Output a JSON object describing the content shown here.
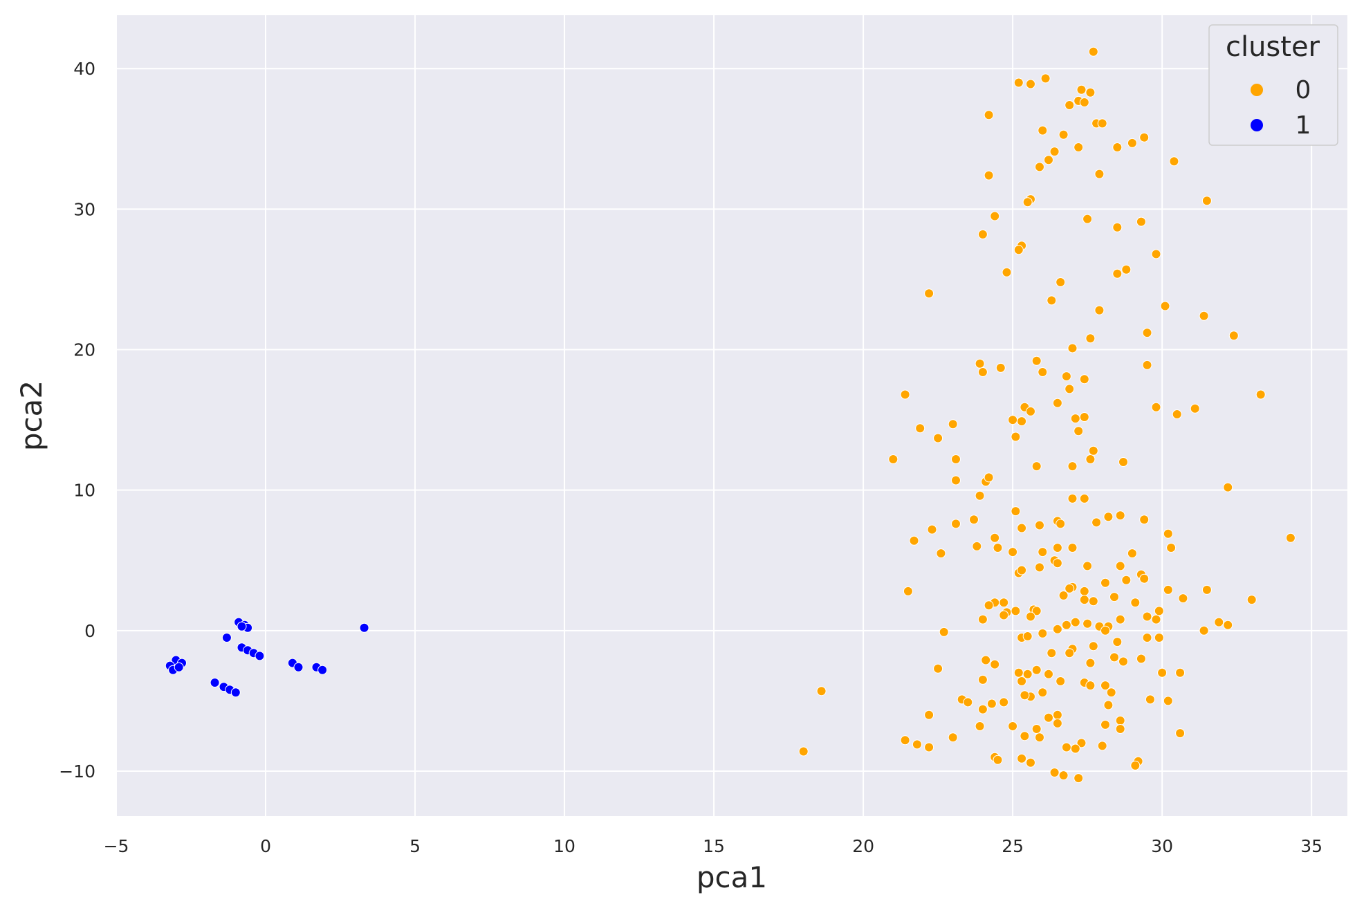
{
  "chart_data": {
    "type": "scatter",
    "title": "",
    "xlabel": "pca1",
    "ylabel": "pca2",
    "xlim": [
      -5,
      36.2
    ],
    "ylim": [
      -13.2,
      43.8
    ],
    "xticks": [
      -5,
      0,
      5,
      10,
      15,
      20,
      25,
      30,
      35
    ],
    "yticks": [
      -10,
      0,
      10,
      20,
      30,
      40
    ],
    "xtick_labels": [
      "−5",
      "0",
      "5",
      "10",
      "15",
      "20",
      "25",
      "30",
      "35"
    ],
    "ytick_labels": [
      "−10",
      "0",
      "10",
      "20",
      "30",
      "40"
    ],
    "grid": true,
    "background": "#eaeaf2",
    "legend": {
      "title": "cluster",
      "placement": "top-right",
      "entries": [
        {
          "label": "0",
          "color": "#ffa500"
        },
        {
          "label": "1",
          "color": "#0000ff"
        }
      ]
    },
    "series": [
      {
        "name": "0",
        "color": "#ffa500",
        "points": [
          [
            27.7,
            41.2
          ],
          [
            25.2,
            39.0
          ],
          [
            25.6,
            38.9
          ],
          [
            26.1,
            39.3
          ],
          [
            27.3,
            38.5
          ],
          [
            27.6,
            38.3
          ],
          [
            26.9,
            37.4
          ],
          [
            27.2,
            37.7
          ],
          [
            27.4,
            37.6
          ],
          [
            24.2,
            36.7
          ],
          [
            27.8,
            36.1
          ],
          [
            28.0,
            36.1
          ],
          [
            26.0,
            35.6
          ],
          [
            26.7,
            35.3
          ],
          [
            29.4,
            35.1
          ],
          [
            29.0,
            34.7
          ],
          [
            27.2,
            34.4
          ],
          [
            28.5,
            34.4
          ],
          [
            26.4,
            34.1
          ],
          [
            26.2,
            33.5
          ],
          [
            25.9,
            33.0
          ],
          [
            30.4,
            33.4
          ],
          [
            27.9,
            32.5
          ],
          [
            24.2,
            32.4
          ],
          [
            25.6,
            30.7
          ],
          [
            25.5,
            30.5
          ],
          [
            31.5,
            30.6
          ],
          [
            24.4,
            29.5
          ],
          [
            27.5,
            29.3
          ],
          [
            29.3,
            29.1
          ],
          [
            28.5,
            28.7
          ],
          [
            24.0,
            28.2
          ],
          [
            25.3,
            27.4
          ],
          [
            25.2,
            27.1
          ],
          [
            29.8,
            26.8
          ],
          [
            28.8,
            25.7
          ],
          [
            28.5,
            25.4
          ],
          [
            24.8,
            25.5
          ],
          [
            26.6,
            24.8
          ],
          [
            26.3,
            23.5
          ],
          [
            22.2,
            24.0
          ],
          [
            30.1,
            23.1
          ],
          [
            27.9,
            22.8
          ],
          [
            31.4,
            22.4
          ],
          [
            29.5,
            21.2
          ],
          [
            32.4,
            21.0
          ],
          [
            27.6,
            20.8
          ],
          [
            27.0,
            20.1
          ],
          [
            23.9,
            19.0
          ],
          [
            25.8,
            19.2
          ],
          [
            24.0,
            18.4
          ],
          [
            24.6,
            18.7
          ],
          [
            26.0,
            18.4
          ],
          [
            29.5,
            18.9
          ],
          [
            26.8,
            18.1
          ],
          [
            27.4,
            17.9
          ],
          [
            26.9,
            17.2
          ],
          [
            21.4,
            16.8
          ],
          [
            33.3,
            16.8
          ],
          [
            25.4,
            15.9
          ],
          [
            25.6,
            15.6
          ],
          [
            26.5,
            16.2
          ],
          [
            29.8,
            15.9
          ],
          [
            31.1,
            15.8
          ],
          [
            30.5,
            15.4
          ],
          [
            25.0,
            15.0
          ],
          [
            25.3,
            14.9
          ],
          [
            27.1,
            15.1
          ],
          [
            27.4,
            15.2
          ],
          [
            21.9,
            14.4
          ],
          [
            23.0,
            14.7
          ],
          [
            27.2,
            14.2
          ],
          [
            22.5,
            13.7
          ],
          [
            25.1,
            13.8
          ],
          [
            27.7,
            12.8
          ],
          [
            21.0,
            12.2
          ],
          [
            23.1,
            12.2
          ],
          [
            27.6,
            12.2
          ],
          [
            28.7,
            12.0
          ],
          [
            25.8,
            11.7
          ],
          [
            27.0,
            11.7
          ],
          [
            23.1,
            10.7
          ],
          [
            24.1,
            10.6
          ],
          [
            24.2,
            10.9
          ],
          [
            32.2,
            10.2
          ],
          [
            23.9,
            9.6
          ],
          [
            27.0,
            9.4
          ],
          [
            27.4,
            9.4
          ],
          [
            25.1,
            8.5
          ],
          [
            28.2,
            8.1
          ],
          [
            28.6,
            8.2
          ],
          [
            29.4,
            7.9
          ],
          [
            23.7,
            7.9
          ],
          [
            23.1,
            7.6
          ],
          [
            26.5,
            7.8
          ],
          [
            26.6,
            7.6
          ],
          [
            25.9,
            7.5
          ],
          [
            27.8,
            7.7
          ],
          [
            25.3,
            7.3
          ],
          [
            22.3,
            7.2
          ],
          [
            30.2,
            6.9
          ],
          [
            34.3,
            6.6
          ],
          [
            21.7,
            6.4
          ],
          [
            24.4,
            6.6
          ],
          [
            30.3,
            5.9
          ],
          [
            23.8,
            6.0
          ],
          [
            24.5,
            5.9
          ],
          [
            26.5,
            5.9
          ],
          [
            27.0,
            5.9
          ],
          [
            25.0,
            5.6
          ],
          [
            26.0,
            5.6
          ],
          [
            29.0,
            5.5
          ],
          [
            22.6,
            5.5
          ],
          [
            26.4,
            5.0
          ],
          [
            27.5,
            4.6
          ],
          [
            26.5,
            4.8
          ],
          [
            25.9,
            4.5
          ],
          [
            28.6,
            4.6
          ],
          [
            25.2,
            4.1
          ],
          [
            25.3,
            4.3
          ],
          [
            29.3,
            4.0
          ],
          [
            29.4,
            3.7
          ],
          [
            28.8,
            3.6
          ],
          [
            28.1,
            3.4
          ],
          [
            27.0,
            3.1
          ],
          [
            26.9,
            3.0
          ],
          [
            21.5,
            2.8
          ],
          [
            31.5,
            2.9
          ],
          [
            30.2,
            2.9
          ],
          [
            27.4,
            2.8
          ],
          [
            26.7,
            2.5
          ],
          [
            28.4,
            2.4
          ],
          [
            30.7,
            2.3
          ],
          [
            33.0,
            2.2
          ],
          [
            27.4,
            2.2
          ],
          [
            27.7,
            2.1
          ],
          [
            29.1,
            2.0
          ],
          [
            24.4,
            2.0
          ],
          [
            24.7,
            2.0
          ],
          [
            24.2,
            1.8
          ],
          [
            25.7,
            1.5
          ],
          [
            25.8,
            1.4
          ],
          [
            24.8,
            1.3
          ],
          [
            25.1,
            1.4
          ],
          [
            24.7,
            1.1
          ],
          [
            29.9,
            1.4
          ],
          [
            29.5,
            1.0
          ],
          [
            28.6,
            0.8
          ],
          [
            29.8,
            0.8
          ],
          [
            24.0,
            0.8
          ],
          [
            25.6,
            1.0
          ],
          [
            27.1,
            0.6
          ],
          [
            27.5,
            0.5
          ],
          [
            26.8,
            0.4
          ],
          [
            31.9,
            0.6
          ],
          [
            32.2,
            0.4
          ],
          [
            27.9,
            0.3
          ],
          [
            28.2,
            0.3
          ],
          [
            26.5,
            0.1
          ],
          [
            28.1,
            0.0
          ],
          [
            31.4,
            0.0
          ],
          [
            22.7,
            -0.1
          ],
          [
            26.0,
            -0.2
          ],
          [
            25.3,
            -0.5
          ],
          [
            25.5,
            -0.4
          ],
          [
            29.5,
            -0.5
          ],
          [
            29.9,
            -0.5
          ],
          [
            28.5,
            -0.8
          ],
          [
            27.7,
            -1.1
          ],
          [
            27.0,
            -1.3
          ],
          [
            26.9,
            -1.6
          ],
          [
            26.3,
            -1.6
          ],
          [
            24.1,
            -2.1
          ],
          [
            28.4,
            -1.9
          ],
          [
            28.7,
            -2.2
          ],
          [
            29.3,
            -2.0
          ],
          [
            27.6,
            -2.3
          ],
          [
            24.4,
            -2.4
          ],
          [
            22.5,
            -2.7
          ],
          [
            25.8,
            -2.8
          ],
          [
            25.2,
            -3.0
          ],
          [
            25.5,
            -3.1
          ],
          [
            25.3,
            -3.6
          ],
          [
            30.0,
            -3.0
          ],
          [
            30.6,
            -3.0
          ],
          [
            26.2,
            -3.1
          ],
          [
            24.0,
            -3.5
          ],
          [
            27.4,
            -3.7
          ],
          [
            26.6,
            -3.6
          ],
          [
            27.6,
            -3.9
          ],
          [
            28.1,
            -3.9
          ],
          [
            28.3,
            -4.4
          ],
          [
            26.0,
            -4.4
          ],
          [
            25.6,
            -4.7
          ],
          [
            25.4,
            -4.6
          ],
          [
            18.6,
            -4.3
          ],
          [
            23.3,
            -4.9
          ],
          [
            23.5,
            -5.1
          ],
          [
            24.3,
            -5.2
          ],
          [
            24.7,
            -5.1
          ],
          [
            29.6,
            -4.9
          ],
          [
            30.2,
            -5.0
          ],
          [
            28.2,
            -5.3
          ],
          [
            24.0,
            -5.6
          ],
          [
            22.2,
            -6.0
          ],
          [
            26.5,
            -6.0
          ],
          [
            28.6,
            -6.4
          ],
          [
            26.2,
            -6.2
          ],
          [
            23.9,
            -6.8
          ],
          [
            25.0,
            -6.8
          ],
          [
            26.5,
            -6.6
          ],
          [
            28.1,
            -6.7
          ],
          [
            25.8,
            -7.0
          ],
          [
            28.6,
            -7.0
          ],
          [
            30.6,
            -7.3
          ],
          [
            25.4,
            -7.5
          ],
          [
            25.9,
            -7.6
          ],
          [
            23.0,
            -7.6
          ],
          [
            27.3,
            -8.0
          ],
          [
            21.4,
            -7.8
          ],
          [
            21.8,
            -8.1
          ],
          [
            22.2,
            -8.3
          ],
          [
            26.8,
            -8.3
          ],
          [
            27.1,
            -8.4
          ],
          [
            28.0,
            -8.2
          ],
          [
            18.0,
            -8.6
          ],
          [
            24.4,
            -9.0
          ],
          [
            24.5,
            -9.2
          ],
          [
            25.3,
            -9.1
          ],
          [
            25.6,
            -9.4
          ],
          [
            29.2,
            -9.3
          ],
          [
            29.1,
            -9.6
          ],
          [
            26.4,
            -10.1
          ],
          [
            26.7,
            -10.3
          ],
          [
            27.2,
            -10.5
          ]
        ]
      },
      {
        "name": "1",
        "color": "#0000ff",
        "points": [
          [
            3.3,
            0.2
          ],
          [
            -0.9,
            0.6
          ],
          [
            -0.7,
            0.4
          ],
          [
            -0.6,
            0.2
          ],
          [
            -0.8,
            0.3
          ],
          [
            -1.3,
            -0.5
          ],
          [
            -0.8,
            -1.2
          ],
          [
            -0.6,
            -1.4
          ],
          [
            -0.4,
            -1.6
          ],
          [
            -0.2,
            -1.8
          ],
          [
            -3.0,
            -2.1
          ],
          [
            -2.8,
            -2.3
          ],
          [
            -3.2,
            -2.5
          ],
          [
            -3.1,
            -2.8
          ],
          [
            -2.9,
            -2.6
          ],
          [
            0.9,
            -2.3
          ],
          [
            1.1,
            -2.6
          ],
          [
            1.7,
            -2.6
          ],
          [
            1.9,
            -2.8
          ],
          [
            -1.7,
            -3.7
          ],
          [
            -1.4,
            -4.0
          ],
          [
            -1.2,
            -4.2
          ],
          [
            -1.0,
            -4.4
          ]
        ]
      }
    ]
  }
}
